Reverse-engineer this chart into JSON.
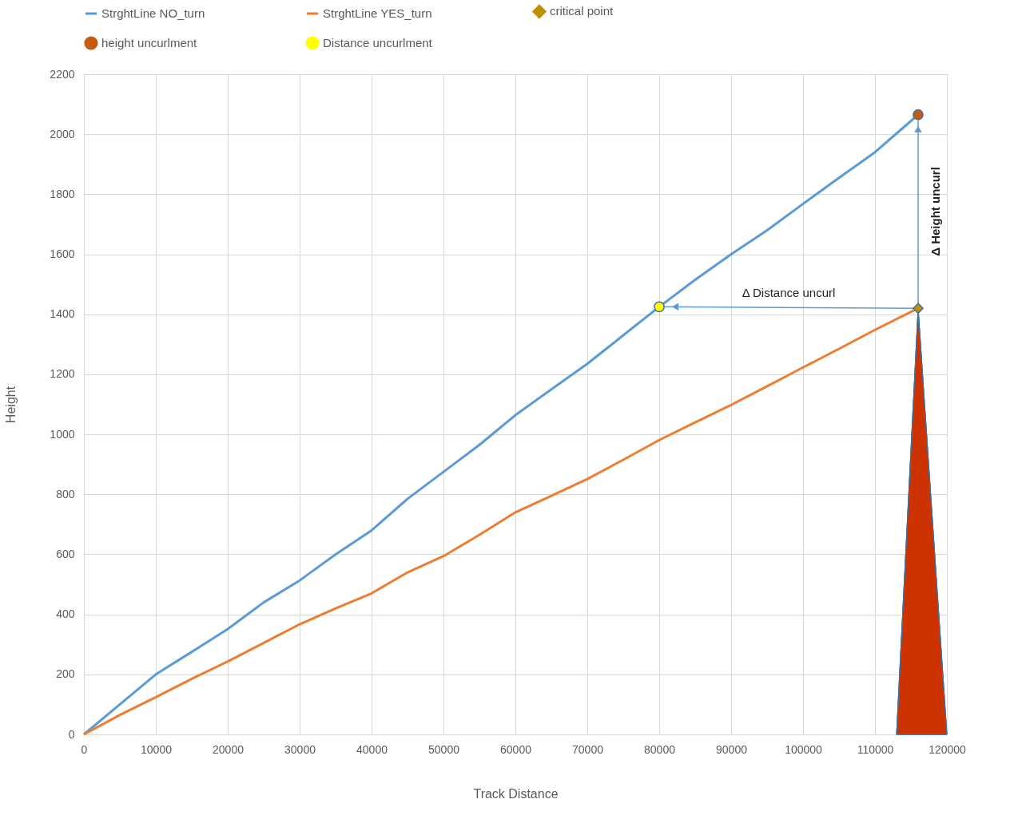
{
  "chart_data": {
    "type": "line",
    "xlabel": "Track Distance",
    "ylabel": "Height",
    "xlim": [
      0,
      120000
    ],
    "xticks": [
      0,
      10000,
      20000,
      30000,
      40000,
      50000,
      60000,
      70000,
      80000,
      90000,
      100000,
      110000,
      120000
    ],
    "ylim": [
      0,
      2200
    ],
    "yticks": [
      0,
      200,
      400,
      600,
      800,
      1000,
      1200,
      1400,
      1600,
      1800,
      2000,
      2200
    ],
    "grid": true,
    "legend": "top",
    "series": [
      {
        "type": "area",
        "color": "#cc3300",
        "x": [
          113000,
          116000,
          120000
        ],
        "values": [
          0,
          1420,
          0
        ]
      },
      {
        "name": "StrghtLine NO_turn",
        "color": "#5b9bd5",
        "x": [
          0,
          5000,
          10000,
          15000,
          20000,
          25000,
          30000,
          35000,
          40000,
          45000,
          50000,
          55000,
          60000,
          65000,
          70000,
          75000,
          80000,
          85000,
          90000,
          95000,
          100000,
          105000,
          110000,
          116000
        ],
        "values": [
          0,
          100,
          200,
          275,
          351,
          440,
          513,
          600,
          680,
          785,
          875,
          965,
          1064,
          1150,
          1235,
          1330,
          1425,
          1515,
          1600,
          1680,
          1768,
          1855,
          1940,
          2065
        ]
      },
      {
        "name": "StrghtLine YES_turn",
        "color": "#ed7d31",
        "x": [
          0,
          5000,
          10000,
          15000,
          20000,
          25000,
          30000,
          35000,
          40000,
          45000,
          50000,
          55000,
          60000,
          65000,
          70000,
          75000,
          80000,
          85000,
          90000,
          95000,
          100000,
          105000,
          110000,
          116000
        ],
        "values": [
          0,
          65,
          124,
          185,
          243,
          305,
          367,
          420,
          470,
          540,
          594,
          665,
          740,
          795,
          851,
          915,
          981,
          1040,
          1098,
          1160,
          1223,
          1285,
          1348,
          1420
        ]
      },
      {
        "type": "scatter",
        "name": "critical point",
        "color": "#bf9000",
        "marker": "diamond",
        "x": [
          116000
        ],
        "values": [
          1420
        ]
      },
      {
        "type": "scatter",
        "name": "height uncurlment",
        "color": "#c55a11",
        "marker": "circle",
        "x": [
          116000
        ],
        "values": [
          2065
        ]
      },
      {
        "type": "scatter",
        "name": "Distance uncurlment",
        "color": "#ffff00",
        "marker": "circle",
        "x": [
          80000
        ],
        "values": [
          1425
        ]
      }
    ],
    "annotations": [
      "Δ Distance uncurl",
      "Δ Height uncurl"
    ]
  }
}
